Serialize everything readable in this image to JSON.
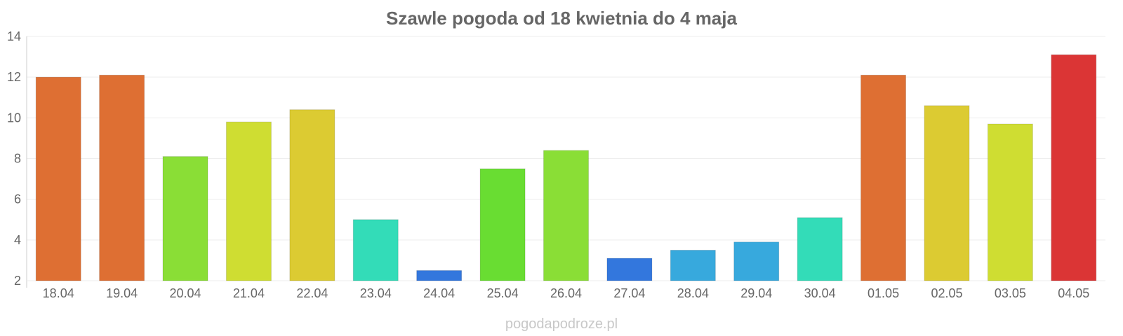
{
  "chart_data": {
    "type": "bar",
    "title": "Szawle pogoda od 18 kwietnia do 4 maja",
    "xlabel": "",
    "ylabel": "",
    "categories": [
      "18.04",
      "19.04",
      "20.04",
      "21.04",
      "22.04",
      "23.04",
      "24.04",
      "25.04",
      "26.04",
      "27.04",
      "28.04",
      "29.04",
      "30.04",
      "01.05",
      "02.05",
      "03.05",
      "04.05"
    ],
    "values": [
      12.0,
      12.1,
      8.1,
      9.8,
      10.4,
      5.0,
      2.5,
      7.5,
      8.4,
      3.1,
      3.5,
      3.9,
      5.1,
      12.1,
      10.6,
      9.7,
      13.1
    ],
    "colors": [
      "#de6f33",
      "#de6f33",
      "#8ade36",
      "#cfdd32",
      "#dccb32",
      "#33dcb8",
      "#3377dd",
      "#69dd32",
      "#8ade36",
      "#3377dd",
      "#37a9dd",
      "#37a9dd",
      "#33dcb8",
      "#de6f33",
      "#dccb32",
      "#cfdd32",
      "#db3535"
    ],
    "ylim": [
      2,
      14
    ],
    "yticks": [
      2,
      4,
      6,
      8,
      10,
      12,
      14
    ],
    "grid": true,
    "legend": "none",
    "watermark": "pogodapodroze.pl"
  }
}
